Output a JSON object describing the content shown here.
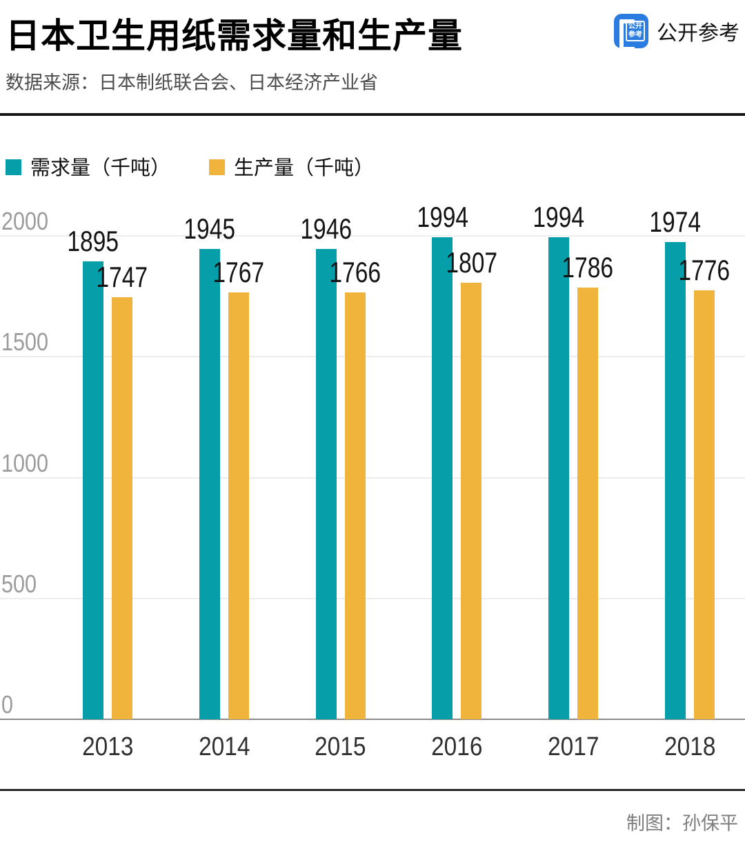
{
  "header": {
    "title": "日本卫生用纸需求量和生产量",
    "source": "数据来源：日本制纸联合会、日本经济产业省",
    "brand": {
      "name": "公开参考",
      "icon_line1": "公开",
      "icon_line2": "参考",
      "icon_color": "#2B7CE0"
    }
  },
  "chart_data": {
    "type": "bar",
    "title": "日本卫生用纸需求量和生产量",
    "categories": [
      "2013",
      "2014",
      "2015",
      "2016",
      "2017",
      "2018"
    ],
    "series": [
      {
        "key": "demand",
        "name": "需求量（千吨）",
        "color": "#069EA8",
        "values": [
          1895,
          1945,
          1946,
          1994,
          1994,
          1974
        ]
      },
      {
        "key": "production",
        "name": "生产量（千吨）",
        "color": "#F0B33B",
        "values": [
          1747,
          1767,
          1766,
          1807,
          1786,
          1776
        ]
      }
    ],
    "yticks": [
      0,
      500,
      1000,
      1500,
      2000
    ],
    "ylim": [
      0,
      2000
    ],
    "grid": true,
    "legend_position": "top",
    "data_labels": true
  },
  "footer": {
    "credit": "制图：孙保平"
  }
}
